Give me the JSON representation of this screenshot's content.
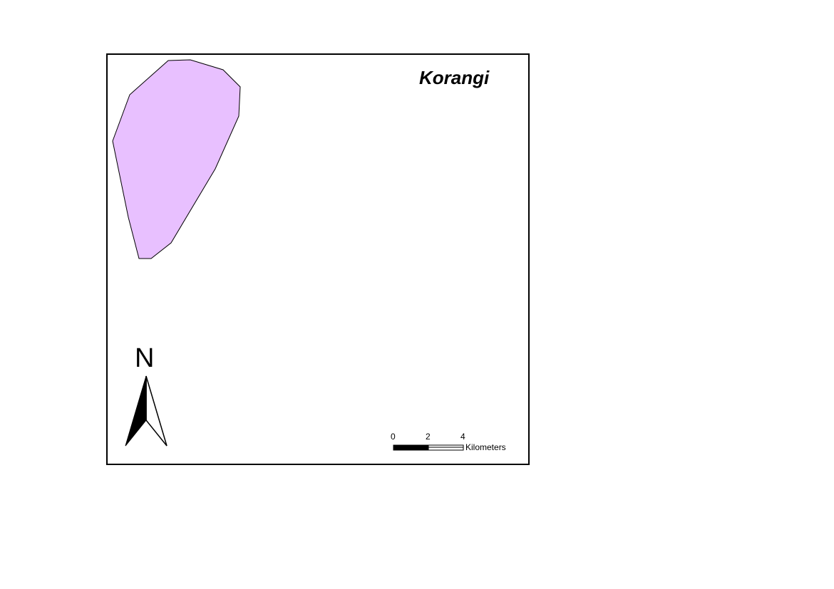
{
  "map": {
    "title": "Korangi",
    "region_fill_color": "#e8c0ff",
    "region_stroke_color": "#000000"
  },
  "north_arrow": {
    "letter": "N",
    "icon": "north-arrow-icon"
  },
  "scale_bar": {
    "ticks": [
      "0",
      "2",
      "4"
    ],
    "unit": "Kilometers"
  }
}
